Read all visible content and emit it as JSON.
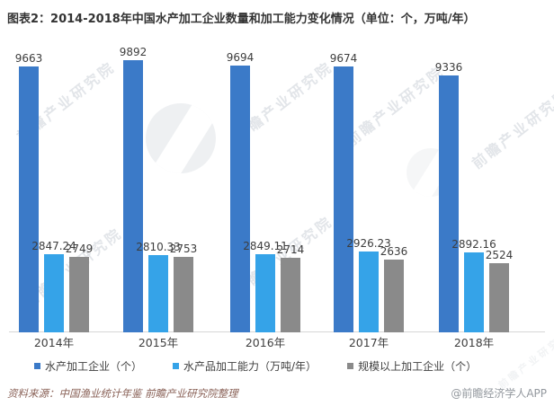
{
  "title": "图表2：2014-2018年中国水产加工企业数量和加工能力变化情况（单位：个，万吨/年）",
  "chart_data": {
    "type": "bar",
    "categories": [
      "2014年",
      "2015年",
      "2016年",
      "2017年",
      "2018年"
    ],
    "series": [
      {
        "name": "水产加工企业（个）",
        "color": "#3b7ac8",
        "values": [
          9663,
          9892,
          9694,
          9674,
          9336
        ]
      },
      {
        "name": "水产品加工能力（万吨/年）",
        "color": "#35a3e8",
        "values": [
          2847.24,
          2810.33,
          2849.11,
          2926.23,
          2892.16
        ]
      },
      {
        "name": "规模以上加工企业（个）",
        "color": "#8a8a8a",
        "values": [
          2749,
          2753,
          2714,
          2636,
          2524
        ]
      }
    ],
    "ylim": [
      0,
      10000
    ],
    "grid": false,
    "legend_position": "bottom",
    "value_labels": true
  },
  "footer": {
    "source": "资料来源：中国渔业统计年鉴 前瞻产业研究院整理",
    "credit": "@前瞻经济学人APP"
  },
  "watermark": {
    "text": "前瞻产业研究院",
    "logo_name": "forward-circle-logo"
  }
}
